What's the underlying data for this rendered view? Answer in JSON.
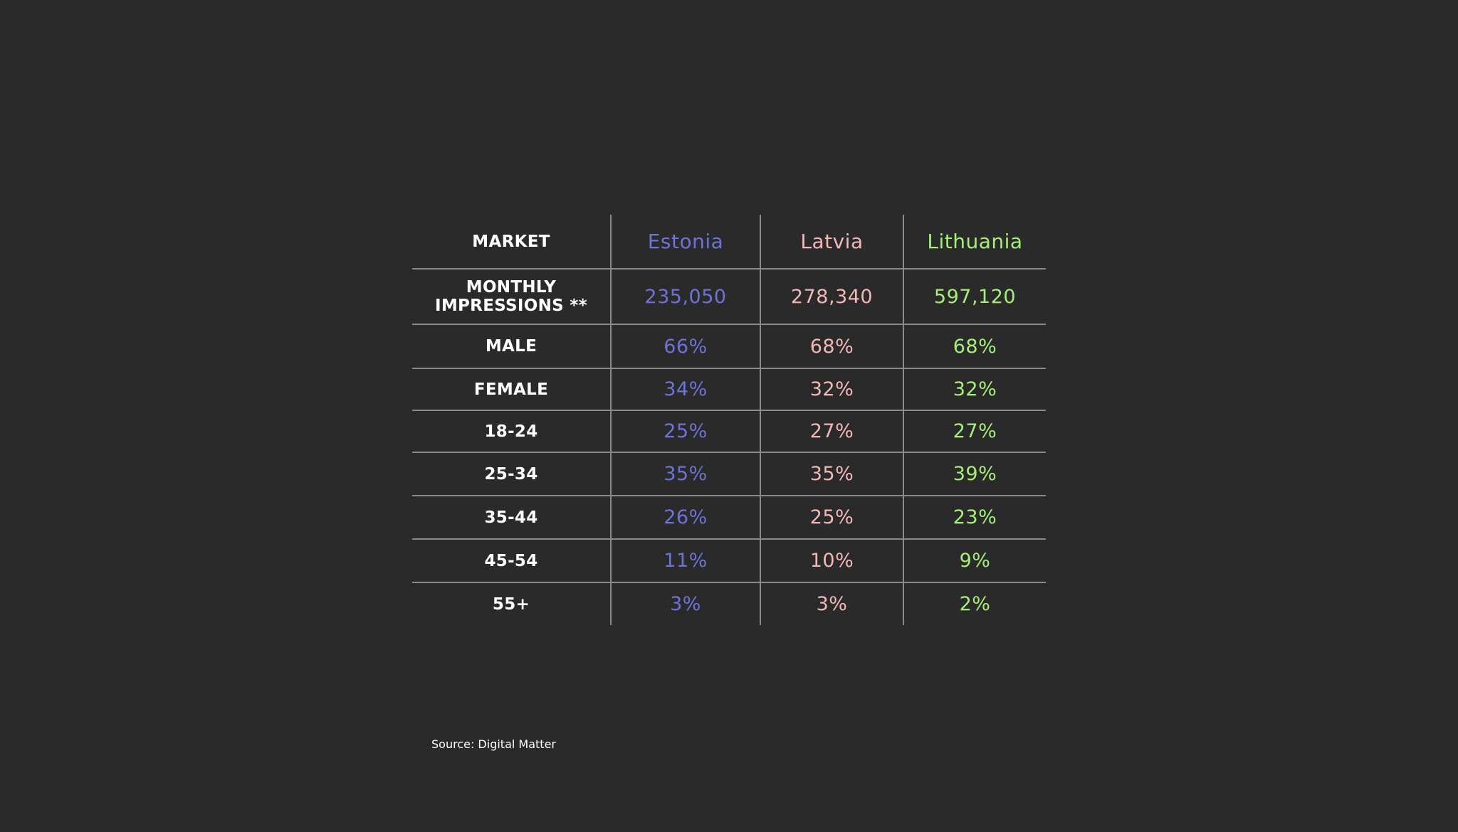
{
  "table": {
    "headers": [
      "MARKET",
      "Estonia",
      "Latvia",
      "Lithuania"
    ],
    "rows": [
      {
        "label": "MONTHLY\nIMPRESSIONS **",
        "values": [
          "235,050",
          "278,340",
          "597,120"
        ]
      },
      {
        "label": "MALE",
        "values": [
          "66%",
          "68%",
          "68%"
        ]
      },
      {
        "label": "FEMALE",
        "values": [
          "34%",
          "32%",
          "32%"
        ]
      },
      {
        "label": "18-24",
        "values": [
          "25%",
          "27%",
          "27%"
        ]
      },
      {
        "label": "25-34",
        "values": [
          "35%",
          "35%",
          "39%"
        ]
      },
      {
        "label": "35-44",
        "values": [
          "26%",
          "25%",
          "23%"
        ]
      },
      {
        "label": "45-54",
        "values": [
          "11%",
          "10%",
          "9%"
        ]
      },
      {
        "label": "55+",
        "values": [
          "3%",
          "3%",
          "2%"
        ]
      }
    ]
  },
  "colors": {
    "estonia": "#6f72d6",
    "latvia": "#f2b8b8",
    "lithuania": "#a6ef78",
    "background": "#2a2a2a"
  },
  "source": "Source: Digital Matter"
}
